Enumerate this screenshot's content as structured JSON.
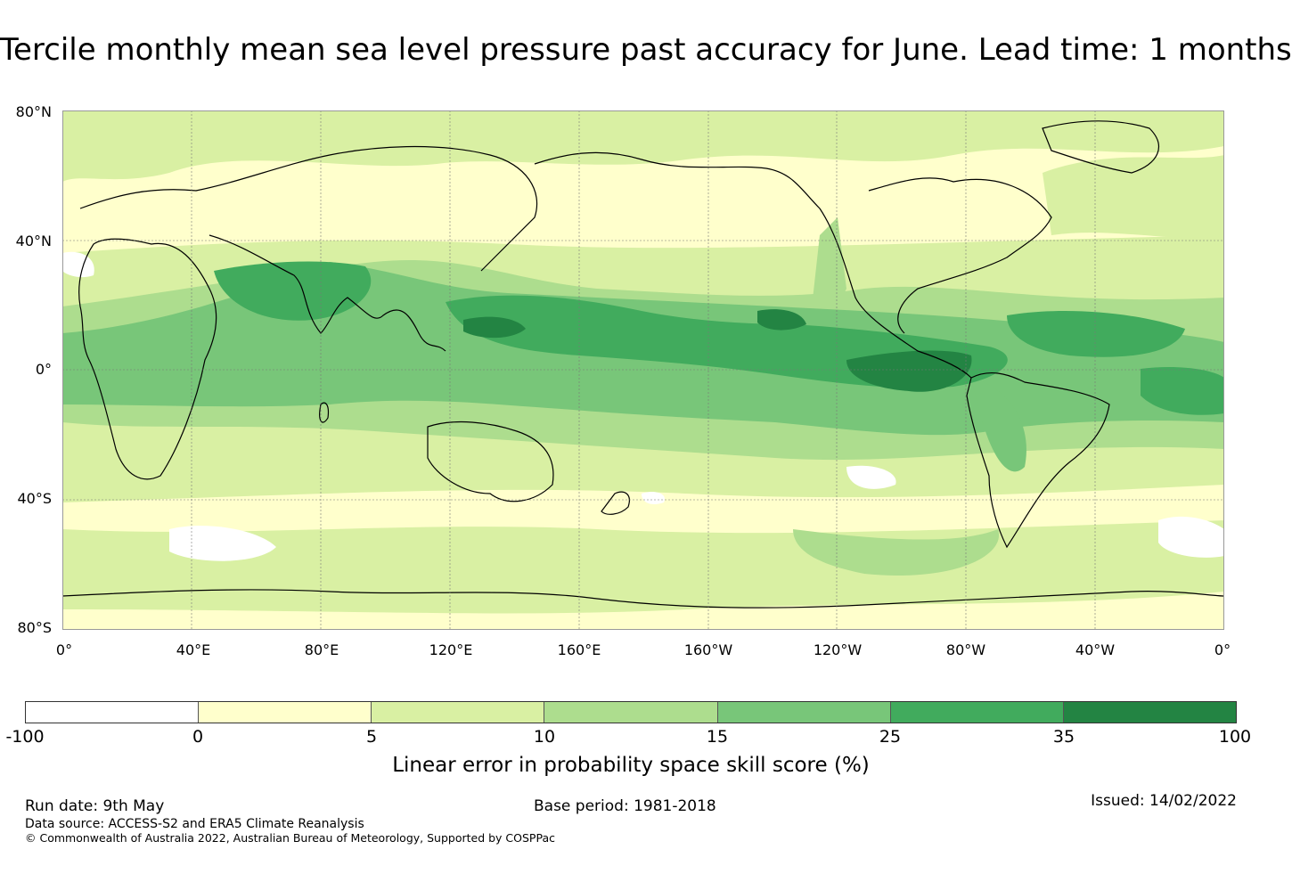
{
  "title": "Tercile monthly mean sea level pressure past accuracy for June. Lead time: 1 months",
  "map": {
    "lat_labels": [
      "80°N",
      "40°N",
      "0°",
      "40°S",
      "80°S"
    ],
    "lon_labels": [
      "0°",
      "40°E",
      "80°E",
      "120°E",
      "160°E",
      "160°W",
      "120°W",
      "80°W",
      "40°W",
      "0°"
    ]
  },
  "colorbar": {
    "ticks": [
      "-100",
      "0",
      "5",
      "10",
      "15",
      "25",
      "35",
      "100"
    ],
    "colors": [
      "#ffffff",
      "#ffffcc",
      "#d9f0a3",
      "#addd8e",
      "#78c679",
      "#41ab5d",
      "#238443"
    ],
    "label": "Linear error in probability space skill score (%)"
  },
  "footer": {
    "run_date": "Run date: 9th May",
    "base_period": "Base period: 1981-2018",
    "issued": "Issued: 14/02/2022",
    "data_source": "Data source: ACCESS-S2 and ERA5 Climate Reanalysis",
    "copyright": "© Commonwealth of Australia 2022, Australian Bureau of Meteorology, Supported by COSPPac"
  }
}
